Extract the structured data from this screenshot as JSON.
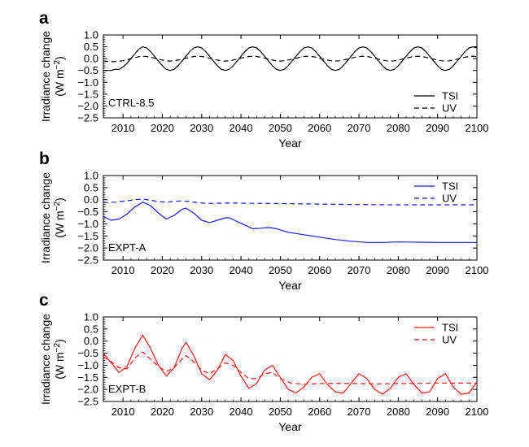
{
  "chart_data": [
    {
      "type": "line",
      "panel_label": "a",
      "title": "",
      "annotation": "CTRL-8.5",
      "xlabel": "Year",
      "ylabel_line1": "Irradiance change",
      "ylabel_line2": "(W m",
      "ylabel_exp": "−2",
      "ylabel_close": ")",
      "xlim": [
        2005,
        2100
      ],
      "ylim": [
        -2.5,
        1.0
      ],
      "xticks": [
        2010,
        2020,
        2030,
        2040,
        2050,
        2060,
        2070,
        2080,
        2090,
        2100
      ],
      "yticks": [
        1.0,
        0.5,
        0.0,
        -0.5,
        -1.0,
        -1.5,
        -2.0,
        -2.5
      ],
      "color": "#000000",
      "legend_position": "bottom-right",
      "series": [
        {
          "name": "TSI",
          "dash": "solid",
          "x": [
            2005,
            2006,
            2007,
            2008,
            2009,
            2010,
            2011,
            2012,
            2013,
            2014,
            2015,
            2016,
            2017,
            2018,
            2019,
            2020,
            2021,
            2022,
            2023,
            2024,
            2025,
            2026,
            2027,
            2028,
            2029,
            2030,
            2031,
            2032,
            2033,
            2034,
            2035,
            2036,
            2037,
            2038,
            2039,
            2040,
            2041,
            2042,
            2043,
            2044,
            2045,
            2046,
            2047,
            2048,
            2049,
            2050,
            2051,
            2052,
            2053,
            2054,
            2055,
            2056,
            2057,
            2058,
            2059,
            2060,
            2061,
            2062,
            2063,
            2064,
            2065,
            2066,
            2067,
            2068,
            2069,
            2070,
            2071,
            2072,
            2073,
            2074,
            2075,
            2076,
            2077,
            2078,
            2079,
            2080,
            2081,
            2082,
            2083,
            2084,
            2085,
            2086,
            2087,
            2088,
            2089,
            2090,
            2091,
            2092,
            2093,
            2094,
            2095,
            2096,
            2097,
            2098,
            2099,
            2100
          ],
          "y": [
            -0.5,
            -0.5,
            -0.5,
            -0.45,
            -0.45,
            -0.35,
            -0.2,
            0.0,
            0.2,
            0.4,
            0.5,
            0.45,
            0.3,
            0.1,
            -0.1,
            -0.3,
            -0.45,
            -0.5,
            -0.45,
            -0.3,
            -0.1,
            0.1,
            0.3,
            0.45,
            0.5,
            0.45,
            0.3,
            0.1,
            -0.1,
            -0.3,
            -0.45,
            -0.5,
            -0.45,
            -0.3,
            -0.1,
            0.1,
            0.3,
            0.45,
            0.5,
            0.45,
            0.3,
            0.1,
            -0.1,
            -0.3,
            -0.45,
            -0.5,
            -0.45,
            -0.3,
            -0.1,
            0.1,
            0.3,
            0.45,
            0.5,
            0.45,
            0.3,
            0.1,
            -0.1,
            -0.3,
            -0.45,
            -0.5,
            -0.45,
            -0.3,
            -0.1,
            0.1,
            0.3,
            0.45,
            0.5,
            0.45,
            0.3,
            0.1,
            -0.1,
            -0.3,
            -0.45,
            -0.5,
            -0.45,
            -0.3,
            -0.1,
            0.1,
            0.3,
            0.45,
            0.5,
            0.45,
            0.3,
            0.1,
            -0.1,
            -0.3,
            -0.45,
            -0.5,
            -0.45,
            -0.3,
            -0.1,
            0.1,
            0.3,
            0.45,
            0.5,
            0.45
          ]
        },
        {
          "name": "UV",
          "dash": "dashed",
          "x": [
            2005,
            2006,
            2007,
            2008,
            2009,
            2010,
            2011,
            2012,
            2013,
            2014,
            2015,
            2016,
            2017,
            2018,
            2019,
            2020,
            2021,
            2022,
            2023,
            2024,
            2025,
            2026,
            2027,
            2028,
            2029,
            2030,
            2031,
            2032,
            2033,
            2034,
            2035,
            2036,
            2037,
            2038,
            2039,
            2040,
            2041,
            2042,
            2043,
            2044,
            2045,
            2046,
            2047,
            2048,
            2049,
            2050,
            2051,
            2052,
            2053,
            2054,
            2055,
            2056,
            2057,
            2058,
            2059,
            2060,
            2061,
            2062,
            2063,
            2064,
            2065,
            2066,
            2067,
            2068,
            2069,
            2070,
            2071,
            2072,
            2073,
            2074,
            2075,
            2076,
            2077,
            2078,
            2079,
            2080,
            2081,
            2082,
            2083,
            2084,
            2085,
            2086,
            2087,
            2088,
            2089,
            2090,
            2091,
            2092,
            2093,
            2094,
            2095,
            2096,
            2097,
            2098,
            2099,
            2100
          ],
          "y": [
            -0.1,
            -0.12,
            -0.13,
            -0.12,
            -0.11,
            -0.09,
            -0.05,
            0.0,
            0.04,
            0.08,
            0.1,
            0.09,
            0.06,
            0.02,
            -0.02,
            -0.06,
            -0.09,
            -0.1,
            -0.09,
            -0.06,
            -0.02,
            0.02,
            0.06,
            0.09,
            0.1,
            0.09,
            0.06,
            0.02,
            -0.02,
            -0.06,
            -0.09,
            -0.1,
            -0.09,
            -0.06,
            -0.02,
            0.02,
            0.06,
            0.09,
            0.1,
            0.09,
            0.06,
            0.02,
            -0.02,
            -0.06,
            -0.09,
            -0.1,
            -0.09,
            -0.06,
            -0.02,
            0.02,
            0.06,
            0.09,
            0.1,
            0.09,
            0.06,
            0.02,
            -0.02,
            -0.06,
            -0.09,
            -0.1,
            -0.09,
            -0.06,
            -0.02,
            0.02,
            0.06,
            0.09,
            0.1,
            0.09,
            0.06,
            0.02,
            -0.02,
            -0.06,
            -0.09,
            -0.1,
            -0.09,
            -0.06,
            -0.02,
            0.02,
            0.06,
            0.09,
            0.1,
            0.09,
            0.06,
            0.02,
            -0.02,
            -0.06,
            -0.09,
            -0.1,
            -0.09,
            -0.06,
            -0.02,
            0.02,
            0.06,
            0.09,
            0.1,
            0.09
          ]
        }
      ]
    },
    {
      "type": "line",
      "panel_label": "b",
      "title": "",
      "annotation": "EXPT-A",
      "xlabel": "Year",
      "ylabel_line1": "Irradiance change",
      "ylabel_line2": "(W m",
      "ylabel_exp": "−2",
      "ylabel_close": ")",
      "xlim": [
        2005,
        2100
      ],
      "ylim": [
        -2.5,
        1.0
      ],
      "xticks": [
        2010,
        2020,
        2030,
        2040,
        2050,
        2060,
        2070,
        2080,
        2090,
        2100
      ],
      "yticks": [
        1.0,
        0.5,
        0.0,
        -0.5,
        -1.0,
        -1.5,
        -2.0,
        -2.5
      ],
      "color": "#1a1aff",
      "legend_position": "top-right",
      "series": [
        {
          "name": "TSI",
          "dash": "solid",
          "x": [
            2005,
            2007,
            2009,
            2011,
            2013,
            2015,
            2017,
            2019,
            2021,
            2023,
            2025,
            2026,
            2028,
            2030,
            2032,
            2034,
            2036,
            2037,
            2039,
            2041,
            2043,
            2045,
            2047,
            2049,
            2052,
            2056,
            2060,
            2064,
            2068,
            2072,
            2076,
            2080,
            2085,
            2090,
            2095,
            2100
          ],
          "y": [
            -0.7,
            -0.85,
            -0.8,
            -0.6,
            -0.3,
            -0.1,
            -0.25,
            -0.55,
            -0.8,
            -0.65,
            -0.4,
            -0.35,
            -0.55,
            -0.85,
            -0.95,
            -0.85,
            -0.75,
            -0.75,
            -0.9,
            -1.05,
            -1.2,
            -1.18,
            -1.15,
            -1.2,
            -1.35,
            -1.45,
            -1.55,
            -1.65,
            -1.72,
            -1.77,
            -1.77,
            -1.75,
            -1.76,
            -1.77,
            -1.77,
            -1.77
          ]
        },
        {
          "name": "UV",
          "dash": "dashed",
          "x": [
            2005,
            2008,
            2011,
            2013,
            2015,
            2017,
            2019,
            2021,
            2023,
            2025,
            2027,
            2029,
            2031,
            2033,
            2036,
            2039,
            2042,
            2046,
            2050,
            2055,
            2060,
            2065,
            2070,
            2080,
            2090,
            2100
          ],
          "y": [
            -0.12,
            -0.1,
            -0.05,
            0.0,
            0.02,
            -0.02,
            -0.08,
            -0.1,
            -0.07,
            -0.05,
            -0.08,
            -0.12,
            -0.15,
            -0.15,
            -0.14,
            -0.14,
            -0.15,
            -0.15,
            -0.16,
            -0.17,
            -0.18,
            -0.19,
            -0.2,
            -0.21,
            -0.21,
            -0.21
          ]
        }
      ]
    },
    {
      "type": "line",
      "panel_label": "c",
      "title": "",
      "annotation": "EXPT-B",
      "xlabel": "Year",
      "ylabel_line1": "Irradiance change",
      "ylabel_line2": "(W m",
      "ylabel_exp": "−2",
      "ylabel_close": ")",
      "xlim": [
        2005,
        2100
      ],
      "ylim": [
        -2.5,
        1.0
      ],
      "xticks": [
        2010,
        2020,
        2030,
        2040,
        2050,
        2060,
        2070,
        2080,
        2090,
        2100
      ],
      "yticks": [
        1.0,
        0.5,
        0.0,
        -0.5,
        -1.0,
        -1.5,
        -2.0,
        -2.5
      ],
      "color": "#ff1a1a",
      "legend_position": "top-right",
      "series": [
        {
          "name": "TSI",
          "dash": "solid",
          "x": [
            2005,
            2007,
            2009,
            2011,
            2013,
            2015,
            2017,
            2019,
            2021,
            2023,
            2025,
            2026,
            2028,
            2030,
            2032,
            2034,
            2036,
            2038,
            2040,
            2042,
            2044,
            2046,
            2048,
            2050,
            2052,
            2054,
            2056,
            2058,
            2060,
            2062,
            2064,
            2066,
            2068,
            2070,
            2072,
            2074,
            2076,
            2078,
            2080,
            2082,
            2084,
            2086,
            2088,
            2090,
            2092,
            2094,
            2096,
            2098,
            2100
          ],
          "y": [
            -0.5,
            -0.9,
            -1.3,
            -1.05,
            -0.3,
            0.25,
            -0.3,
            -1.0,
            -1.45,
            -1.1,
            -0.3,
            -0.05,
            -0.6,
            -1.35,
            -1.6,
            -1.2,
            -0.55,
            -0.8,
            -1.45,
            -1.95,
            -1.75,
            -1.2,
            -1.0,
            -1.5,
            -2.0,
            -2.15,
            -1.9,
            -1.5,
            -1.35,
            -1.8,
            -2.1,
            -2.15,
            -1.75,
            -1.35,
            -1.55,
            -2.0,
            -2.2,
            -1.95,
            -1.5,
            -1.35,
            -1.8,
            -2.15,
            -2.1,
            -1.55,
            -1.35,
            -1.9,
            -2.2,
            -2.15,
            -1.7
          ]
        },
        {
          "name": "UV",
          "dash": "dashed",
          "x": [
            2005,
            2007,
            2009,
            2011,
            2013,
            2015,
            2017,
            2019,
            2021,
            2023,
            2025,
            2026,
            2028,
            2030,
            2032,
            2034,
            2036,
            2038,
            2040,
            2042,
            2044,
            2046,
            2048,
            2050,
            2053,
            2056,
            2060,
            2065,
            2070,
            2075,
            2080,
            2085,
            2090,
            2095,
            2100
          ],
          "y": [
            -0.65,
            -0.85,
            -1.1,
            -1.15,
            -0.7,
            -0.45,
            -0.75,
            -1.05,
            -1.25,
            -1.1,
            -0.75,
            -0.6,
            -0.85,
            -1.2,
            -1.35,
            -1.15,
            -0.9,
            -1.0,
            -1.3,
            -1.55,
            -1.55,
            -1.35,
            -1.3,
            -1.55,
            -1.75,
            -1.78,
            -1.76,
            -1.75,
            -1.76,
            -1.77,
            -1.76,
            -1.75,
            -1.74,
            -1.74,
            -1.74
          ]
        }
      ]
    }
  ]
}
